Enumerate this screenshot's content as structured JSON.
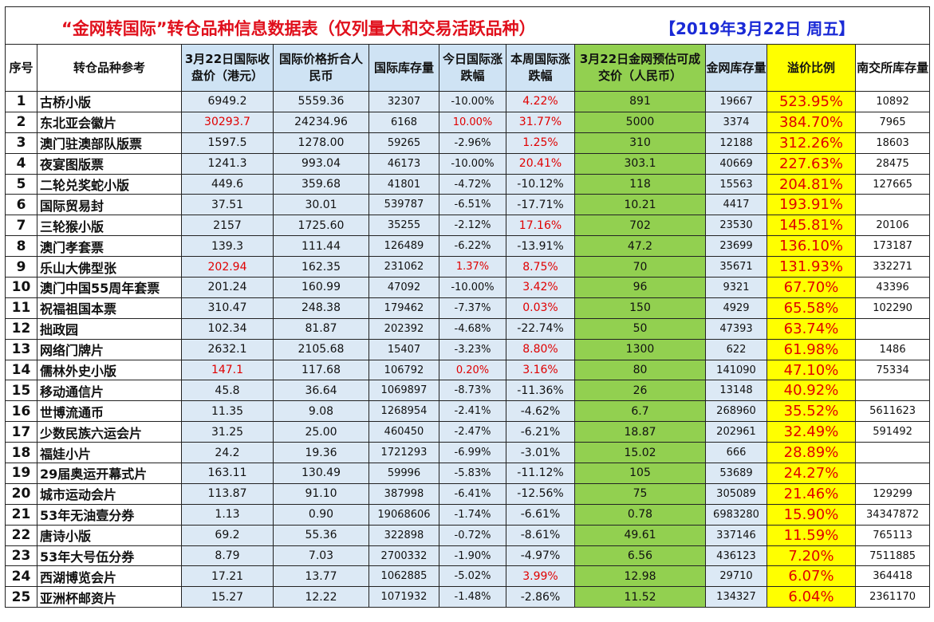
{
  "title": "“金网转国际”转仓品种信息数据表（仅列量大和交易活跃品种）",
  "date": "【2019年3月22日  周五】",
  "headers": {
    "idx": "序号",
    "name": "转仓品种参考",
    "close": "3月22日国际收盘价（港元）",
    "rmb": "国际价格折合人民币",
    "stock": "国际库存量",
    "chg": "今日国际涨跌幅",
    "wk": "本周国际涨跌幅",
    "est": "3月22日金网预估可成交价（人民币）",
    "jw": "金网库存量",
    "prem": "溢价比例",
    "nj": "南交所库存量"
  },
  "colors": {
    "blue": "#dce9f5",
    "green": "#92d050",
    "yellow": "#ffff00",
    "red": "#e00000",
    "title_red": "#e0101c",
    "title_blue": "#1a2ad6"
  },
  "rows": [
    {
      "idx": "1",
      "name": "古桥小版",
      "close": "6949.2",
      "rmb": "5559.36",
      "stock": "32307",
      "chg": "-10.00%",
      "wk": "4.22%",
      "est": "891",
      "jw": "19667",
      "prem": "523.95%",
      "nj": "10892",
      "red": [
        "wk"
      ]
    },
    {
      "idx": "2",
      "name": "东北亚会徽片",
      "close": "30293.7",
      "rmb": "24234.96",
      "stock": "6168",
      "chg": "10.00%",
      "wk": "31.77%",
      "est": "5000",
      "jw": "3374",
      "prem": "384.70%",
      "nj": "7965",
      "red": [
        "close",
        "chg",
        "wk"
      ]
    },
    {
      "idx": "3",
      "name": "澳门驻澳部队版票",
      "close": "1597.5",
      "rmb": "1278.00",
      "stock": "59265",
      "chg": "-2.96%",
      "wk": "1.25%",
      "est": "310",
      "jw": "12188",
      "prem": "312.26%",
      "nj": "18603",
      "red": [
        "wk"
      ]
    },
    {
      "idx": "4",
      "name": "夜宴图版票",
      "close": "1241.3",
      "rmb": "993.04",
      "stock": "46173",
      "chg": "-10.00%",
      "wk": "20.41%",
      "est": "303.1",
      "jw": "40669",
      "prem": "227.63%",
      "nj": "28475",
      "red": [
        "wk"
      ]
    },
    {
      "idx": "5",
      "name": "二轮兑奖蛇小版",
      "close": "449.6",
      "rmb": "359.68",
      "stock": "41801",
      "chg": "-4.72%",
      "wk": "-10.12%",
      "est": "118",
      "jw": "15563",
      "prem": "204.81%",
      "nj": "127665",
      "red": []
    },
    {
      "idx": "6",
      "name": "国际贸易封",
      "close": "37.51",
      "rmb": "30.01",
      "stock": "539787",
      "chg": "-6.51%",
      "wk": "-17.71%",
      "est": "10.21",
      "jw": "4417",
      "prem": "193.91%",
      "nj": "",
      "red": []
    },
    {
      "idx": "7",
      "name": "三轮猴小版",
      "close": "2157",
      "rmb": "1725.60",
      "stock": "35255",
      "chg": "-2.12%",
      "wk": "17.16%",
      "est": "702",
      "jw": "23530",
      "prem": "145.81%",
      "nj": "20106",
      "red": [
        "wk"
      ]
    },
    {
      "idx": "8",
      "name": "澳门孝套票",
      "close": "139.3",
      "rmb": "111.44",
      "stock": "126489",
      "chg": "-6.22%",
      "wk": "-13.91%",
      "est": "47.2",
      "jw": "23699",
      "prem": "136.10%",
      "nj": "173187",
      "red": []
    },
    {
      "idx": "9",
      "name": "乐山大佛型张",
      "close": "202.94",
      "rmb": "162.35",
      "stock": "231062",
      "chg": "1.37%",
      "wk": "8.75%",
      "est": "70",
      "jw": "35671",
      "prem": "131.93%",
      "nj": "332271",
      "red": [
        "close",
        "chg",
        "wk"
      ]
    },
    {
      "idx": "10",
      "name": "澳门中国55周年套票",
      "close": "201.24",
      "rmb": "160.99",
      "stock": "47092",
      "chg": "-10.00%",
      "wk": "3.42%",
      "est": "96",
      "jw": "9321",
      "prem": "67.70%",
      "nj": "43396",
      "red": [
        "wk"
      ]
    },
    {
      "idx": "11",
      "name": "祝福祖国本票",
      "close": "310.47",
      "rmb": "248.38",
      "stock": "179462",
      "chg": "-7.37%",
      "wk": "0.03%",
      "est": "150",
      "jw": "4929",
      "prem": "65.58%",
      "nj": "102290",
      "red": [
        "wk"
      ]
    },
    {
      "idx": "12",
      "name": "拙政园",
      "close": "102.34",
      "rmb": "81.87",
      "stock": "202392",
      "chg": "-4.68%",
      "wk": "-22.74%",
      "est": "50",
      "jw": "47393",
      "prem": "63.74%",
      "nj": "",
      "red": []
    },
    {
      "idx": "13",
      "name": "网络门牌片",
      "close": "2632.1",
      "rmb": "2105.68",
      "stock": "15407",
      "chg": "-3.23%",
      "wk": "8.80%",
      "est": "1300",
      "jw": "622",
      "prem": "61.98%",
      "nj": "1486",
      "red": [
        "wk"
      ]
    },
    {
      "idx": "14",
      "name": "儒林外史小版",
      "close": "147.1",
      "rmb": "117.68",
      "stock": "106792",
      "chg": "0.20%",
      "wk": "3.16%",
      "est": "80",
      "jw": "141090",
      "prem": "47.10%",
      "nj": "75334",
      "red": [
        "close",
        "chg",
        "wk"
      ]
    },
    {
      "idx": "15",
      "name": "移动通信片",
      "close": "45.8",
      "rmb": "36.64",
      "stock": "1069897",
      "chg": "-8.73%",
      "wk": "-11.36%",
      "est": "26",
      "jw": "13148",
      "prem": "40.92%",
      "nj": "",
      "red": []
    },
    {
      "idx": "16",
      "name": "世博流通币",
      "close": "11.35",
      "rmb": "9.08",
      "stock": "1268954",
      "chg": "-2.41%",
      "wk": "-4.62%",
      "est": "6.7",
      "jw": "268960",
      "prem": "35.52%",
      "nj": "5611623",
      "red": []
    },
    {
      "idx": "17",
      "name": "少数民族六运会片",
      "close": "31.25",
      "rmb": "25.00",
      "stock": "460450",
      "chg": "-2.47%",
      "wk": "-6.21%",
      "est": "18.87",
      "jw": "202961",
      "prem": "32.49%",
      "nj": "591492",
      "red": []
    },
    {
      "idx": "18",
      "name": "福娃小片",
      "close": "24.2",
      "rmb": "19.36",
      "stock": "1721293",
      "chg": "-6.99%",
      "wk": "-3.01%",
      "est": "15.02",
      "jw": "666",
      "prem": "28.89%",
      "nj": "",
      "red": []
    },
    {
      "idx": "19",
      "name": "29届奥运开幕式片",
      "close": "163.11",
      "rmb": "130.49",
      "stock": "59996",
      "chg": "-5.83%",
      "wk": "-11.12%",
      "est": "105",
      "jw": "53689",
      "prem": "24.27%",
      "nj": "",
      "red": []
    },
    {
      "idx": "20",
      "name": "城市运动会片",
      "close": "113.87",
      "rmb": "91.10",
      "stock": "387998",
      "chg": "-6.41%",
      "wk": "-12.56%",
      "est": "75",
      "jw": "305089",
      "prem": "21.46%",
      "nj": "129299",
      "red": []
    },
    {
      "idx": "21",
      "name": "53年无油壹分券",
      "close": "1.13",
      "rmb": "0.90",
      "stock": "19068606",
      "chg": "-1.74%",
      "wk": "-6.61%",
      "est": "0.78",
      "jw": "6983280",
      "prem": "15.90%",
      "nj": "34347872",
      "red": []
    },
    {
      "idx": "22",
      "name": "唐诗小版",
      "close": "69.2",
      "rmb": "55.36",
      "stock": "322898",
      "chg": "-0.72%",
      "wk": "-8.61%",
      "est": "49.61",
      "jw": "337146",
      "prem": "11.59%",
      "nj": "765113",
      "red": []
    },
    {
      "idx": "23",
      "name": "53年大号伍分券",
      "close": "8.79",
      "rmb": "7.03",
      "stock": "2700332",
      "chg": "-1.90%",
      "wk": "-4.97%",
      "est": "6.56",
      "jw": "436123",
      "prem": "7.20%",
      "nj": "7511885",
      "red": []
    },
    {
      "idx": "24",
      "name": "西湖博览会片",
      "close": "17.21",
      "rmb": "13.77",
      "stock": "1062885",
      "chg": "-5.02%",
      "wk": "3.99%",
      "est": "12.98",
      "jw": "29710",
      "prem": "6.07%",
      "nj": "364418",
      "red": [
        "wk"
      ]
    },
    {
      "idx": "25",
      "name": "亚洲杯邮资片",
      "close": "15.27",
      "rmb": "12.22",
      "stock": "1071932",
      "chg": "-1.48%",
      "wk": "-2.86%",
      "est": "11.52",
      "jw": "134327",
      "prem": "6.04%",
      "nj": "2361170",
      "red": []
    }
  ]
}
